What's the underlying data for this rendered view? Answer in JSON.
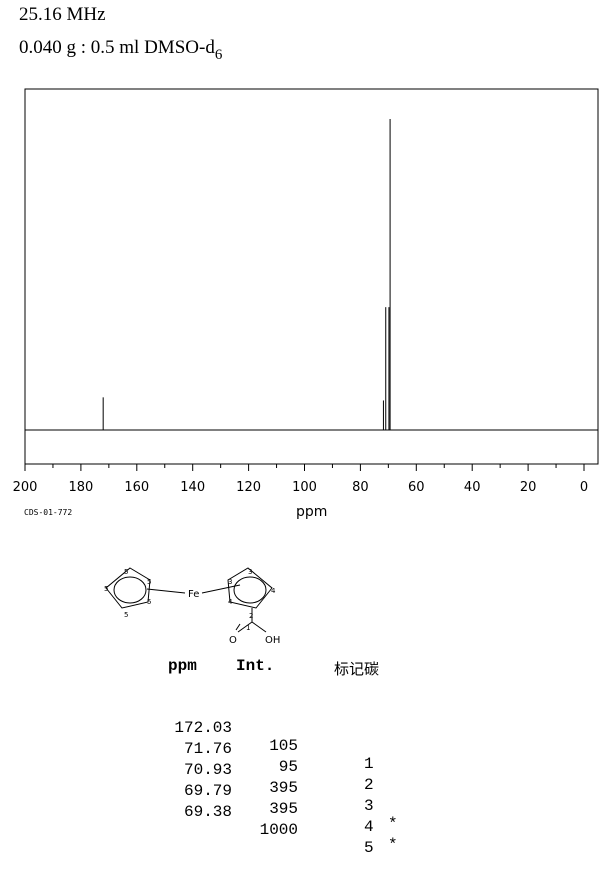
{
  "header": {
    "frequency": "25.16 MHz",
    "sample": "0.040 g : 0.5 ml DMSO-d",
    "sample_sub": "6"
  },
  "spectrum_code": "CDS-01-772",
  "chart_data": {
    "type": "line",
    "xlabel": "ppm",
    "xlim": [
      200,
      0
    ],
    "x_ticks": [
      "200",
      "180",
      "160",
      "140",
      "120",
      "100",
      "80",
      "60",
      "40",
      "20",
      "0"
    ],
    "peaks": [
      {
        "ppm": 172.03,
        "intensity": 105
      },
      {
        "ppm": 71.76,
        "intensity": 95
      },
      {
        "ppm": 70.93,
        "intensity": 395
      },
      {
        "ppm": 69.79,
        "intensity": 395
      },
      {
        "ppm": 69.38,
        "intensity": 1000
      }
    ]
  },
  "structure": {
    "ring_labels_left": [
      "5",
      "5",
      "5",
      "5",
      "5"
    ],
    "ring_labels_right": [
      "3",
      "3",
      "4",
      "4",
      "2"
    ],
    "metal": "Fe",
    "carbonyl_o": "O",
    "hydroxyl": "OH",
    "carbon_1": "1"
  },
  "table": {
    "headers": {
      "ppm": "ppm",
      "int": "Int.",
      "label": "标记碳"
    },
    "rows": [
      {
        "ppm": "172.03",
        "int": "105",
        "label": "1",
        "mark": ""
      },
      {
        "ppm": "71.76",
        "int": "95",
        "label": "2",
        "mark": ""
      },
      {
        "ppm": "70.93",
        "int": "395",
        "label": "3",
        "mark": "*"
      },
      {
        "ppm": "69.79",
        "int": "395",
        "label": "4",
        "mark": "*"
      },
      {
        "ppm": "69.38",
        "int": "1000",
        "label": "5",
        "mark": ""
      }
    ]
  }
}
